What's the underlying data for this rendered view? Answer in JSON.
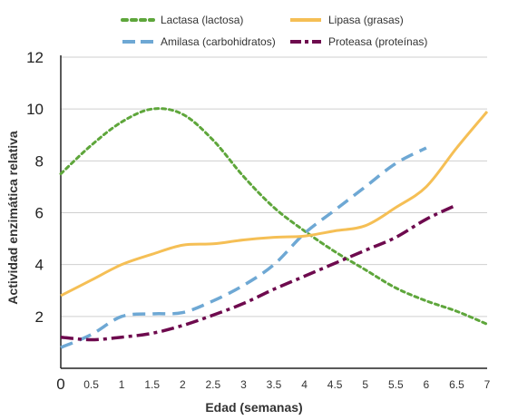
{
  "chart_data": {
    "type": "line",
    "xlabel": "Edad (semanas)",
    "ylabel": "Actividad enzimática relativa",
    "xlim": [
      0,
      7
    ],
    "ylim": [
      0,
      12
    ],
    "x_ticks": [
      "0",
      "0.5",
      "1",
      "1.5",
      "2",
      "2.5",
      "3",
      "3.5",
      "4",
      "4.5",
      "5",
      "5.5",
      "6",
      "6.5",
      "7"
    ],
    "y_ticks": [
      "0",
      "2",
      "4",
      "6",
      "8",
      "10",
      "12"
    ],
    "grid": "horizontal",
    "legend_position": "top",
    "series": [
      {
        "name": "Lactasa (lactosa)",
        "color": "#5ea63b",
        "style": "dotted",
        "points": [
          [
            0,
            7.5
          ],
          [
            0.5,
            8.6
          ],
          [
            1,
            9.5
          ],
          [
            1.5,
            10.0
          ],
          [
            2,
            9.8
          ],
          [
            2.5,
            8.8
          ],
          [
            3,
            7.4
          ],
          [
            3.5,
            6.2
          ],
          [
            4,
            5.3
          ],
          [
            4.5,
            4.5
          ],
          [
            5,
            3.8
          ],
          [
            5.5,
            3.1
          ],
          [
            6,
            2.6
          ],
          [
            6.5,
            2.2
          ],
          [
            7,
            1.7
          ]
        ]
      },
      {
        "name": "Amilasa (carbohidratos)",
        "color": "#6ea8d4",
        "style": "dashed",
        "points": [
          [
            0,
            0.8
          ],
          [
            0.5,
            1.3
          ],
          [
            1,
            2.0
          ],
          [
            1.5,
            2.1
          ],
          [
            2,
            2.15
          ],
          [
            2.5,
            2.6
          ],
          [
            3,
            3.2
          ],
          [
            3.5,
            4.0
          ],
          [
            4,
            5.2
          ],
          [
            4.5,
            6.1
          ],
          [
            5,
            7.0
          ],
          [
            5.5,
            7.9
          ],
          [
            6,
            8.5
          ]
        ]
      },
      {
        "name": "Lipasa (grasas)",
        "color": "#f5bf55",
        "style": "solid",
        "points": [
          [
            0,
            2.8
          ],
          [
            0.5,
            3.4
          ],
          [
            1,
            4.0
          ],
          [
            1.5,
            4.4
          ],
          [
            2,
            4.75
          ],
          [
            2.5,
            4.8
          ],
          [
            3,
            4.95
          ],
          [
            3.5,
            5.05
          ],
          [
            4,
            5.1
          ],
          [
            4.5,
            5.3
          ],
          [
            5,
            5.5
          ],
          [
            5.5,
            6.2
          ],
          [
            6,
            7.0
          ],
          [
            6.5,
            8.5
          ],
          [
            7,
            9.9
          ]
        ]
      },
      {
        "name": "Proteasa (proteínas)",
        "color": "#6e0a4e",
        "style": "dashdot",
        "points": [
          [
            0,
            1.2
          ],
          [
            0.5,
            1.1
          ],
          [
            1,
            1.2
          ],
          [
            1.5,
            1.35
          ],
          [
            2,
            1.65
          ],
          [
            2.5,
            2.05
          ],
          [
            3,
            2.5
          ],
          [
            3.5,
            3.05
          ],
          [
            4,
            3.55
          ],
          [
            4.5,
            4.05
          ],
          [
            5,
            4.55
          ],
          [
            5.5,
            5.05
          ],
          [
            6,
            5.75
          ],
          [
            6.5,
            6.3
          ]
        ]
      }
    ]
  }
}
